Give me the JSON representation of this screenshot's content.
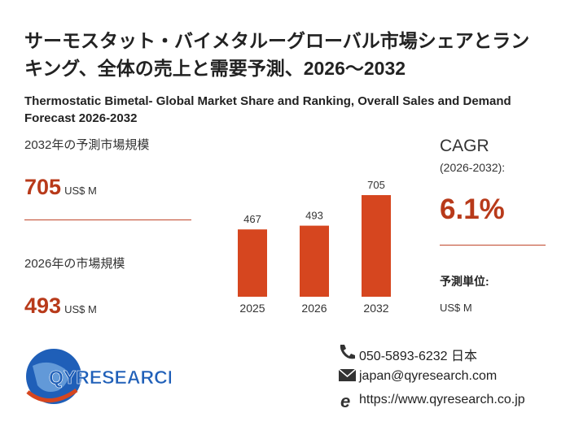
{
  "title": "サーモスタット・バイメタルーグローバル市場シェアとランキング、全体の売上と需要予測、2026～2032",
  "subtitle": "Thermostatic Bimetal- Global Market Share and Ranking, Overall Sales and Demand Forecast 2026-2032",
  "forecast": {
    "label": "2032年の予測市場規模",
    "value": "705",
    "unit": "US$ M"
  },
  "current": {
    "label": "2026年の市場規模",
    "value": "493",
    "unit": "US$ M"
  },
  "cagr": {
    "label": "CAGR",
    "period": "(2026-2032):",
    "value": "6.1%"
  },
  "forecast_unit": {
    "label": "予測単位:",
    "value": "US$ M"
  },
  "contact": {
    "phone": "050-5893-6232 日本",
    "email": "japan@qyresearch.com",
    "url": "https://www.qyresearch.co.jp"
  },
  "logo": "QYRESEARCH",
  "chart_data": {
    "type": "bar",
    "categories": [
      "2025",
      "2026",
      "2032"
    ],
    "values": [
      467,
      493,
      705
    ],
    "color": "#d6461f"
  }
}
